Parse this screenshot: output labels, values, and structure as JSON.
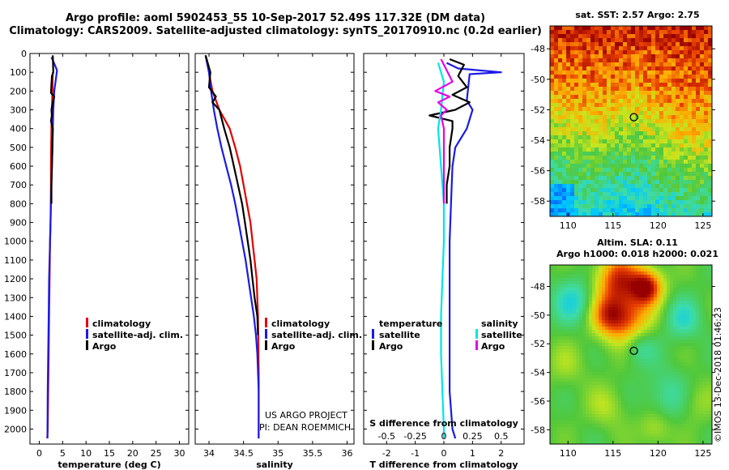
{
  "header": {
    "line1": "Argo profile: aoml 5902453_55 10-Sep-2017 52.49S 117.32E (DM data)",
    "line2": "Climatology: CARS2009. Satellite-adjusted climatology: synTS_20170910.nc (0.2d earlier)"
  },
  "legend": {
    "climatology": "climatology",
    "satellite_adj": "satellite-adj. clim.",
    "argo": "Argo",
    "temperature": "temperature",
    "salinity": "salinity",
    "satellite": "satellite"
  },
  "credits": {
    "line1": "US ARGO PROJECT",
    "line2": "PI: DEAN ROEMMICH",
    "imos": "©IMOS 13-Dec-2018 01:46:23"
  },
  "colors": {
    "climatology": "#e00000",
    "satellite_adj": "#1a1ae6",
    "argo": "#000000",
    "sal_satellite": "#00e5e5",
    "sal_argo": "#e600e6"
  },
  "chart_data": [
    {
      "type": "line",
      "id": "temperature",
      "xlabel": "temperature (deg C)",
      "ylabel": "",
      "xlim": [
        -2,
        32
      ],
      "ylim": [
        2080,
        0
      ],
      "xticks": [
        0,
        5,
        10,
        15,
        20,
        25,
        30
      ],
      "yticks": [
        0,
        100,
        200,
        300,
        400,
        500,
        600,
        700,
        800,
        900,
        1000,
        1100,
        1200,
        1300,
        1400,
        1500,
        1600,
        1700,
        1800,
        1900,
        2000
      ],
      "series": [
        {
          "name": "climatology",
          "color": "#e00000",
          "x": [
            2.9,
            2.8,
            2.7,
            2.6,
            2.55,
            2.5,
            2.5,
            2.45,
            2.4,
            2.3,
            2.2,
            2.1,
            2.0,
            1.9,
            1.8,
            1.7
          ],
          "y": [
            100,
            200,
            300,
            400,
            500,
            600,
            700,
            800,
            900,
            1000,
            1200,
            1400,
            1600,
            1800,
            2000,
            2050
          ]
        },
        {
          "name": "satellite-adj. clim.",
          "color": "#1a1ae6",
          "x": [
            2.6,
            3.3,
            3.8,
            3.2,
            3.0,
            2.9,
            2.8,
            2.7,
            2.6,
            2.5,
            2.4,
            2.3,
            2.1,
            2.0,
            1.9,
            1.8,
            1.75
          ],
          "y": [
            20,
            60,
            90,
            200,
            300,
            400,
            500,
            600,
            700,
            800,
            900,
            1000,
            1200,
            1400,
            1600,
            1800,
            2050
          ]
        },
        {
          "name": "Argo",
          "color": "#000000",
          "x": [
            2.9,
            3.0,
            2.7,
            2.5,
            3.2,
            2.9,
            2.6,
            2.7,
            2.5,
            2.9,
            2.8,
            2.7,
            2.6,
            2.6
          ],
          "y": [
            10,
            100,
            120,
            210,
            230,
            260,
            300,
            330,
            360,
            400,
            500,
            600,
            700,
            800
          ]
        }
      ]
    },
    {
      "type": "line",
      "id": "salinity",
      "xlabel": "salinity",
      "ylabel": "",
      "xlim": [
        33.8,
        36.1
      ],
      "ylim": [
        2080,
        0
      ],
      "xticks": [
        34,
        34.5,
        35,
        35.5,
        36
      ],
      "yticks": [
        0,
        100,
        200,
        300,
        400,
        500,
        600,
        700,
        800,
        900,
        1000,
        1100,
        1200,
        1300,
        1400,
        1500,
        1600,
        1700,
        1800,
        1900,
        2000
      ],
      "series": [
        {
          "name": "climatology",
          "color": "#e00000",
          "x": [
            33.95,
            34.0,
            34.05,
            34.15,
            34.3,
            34.38,
            34.45,
            34.5,
            34.55,
            34.6,
            34.63,
            34.66,
            34.69,
            34.71,
            34.72,
            34.72
          ],
          "y": [
            10,
            100,
            200,
            300,
            400,
            500,
            600,
            700,
            800,
            900,
            1000,
            1100,
            1200,
            1400,
            1700,
            2050
          ]
        },
        {
          "name": "satellite-adj. clim.",
          "color": "#1a1ae6",
          "x": [
            33.95,
            34.0,
            34.03,
            34.07,
            34.12,
            34.18,
            34.25,
            34.32,
            34.38,
            34.43,
            34.48,
            34.53,
            34.57,
            34.61,
            34.65,
            34.68,
            34.7,
            34.72,
            34.72
          ],
          "y": [
            10,
            100,
            200,
            300,
            400,
            500,
            600,
            700,
            800,
            900,
            1000,
            1100,
            1200,
            1300,
            1400,
            1500,
            1600,
            1800,
            2050
          ]
        },
        {
          "name": "Argo",
          "color": "#000000",
          "x": [
            33.95,
            34.02,
            34.0,
            34.1,
            34.05,
            34.15,
            34.22,
            34.3,
            34.36,
            34.42,
            34.48,
            34.52,
            34.56,
            34.6,
            34.63,
            34.66,
            34.7,
            34.71
          ],
          "y": [
            10,
            100,
            180,
            230,
            260,
            300,
            400,
            500,
            600,
            700,
            800,
            900,
            1000,
            1100,
            1200,
            1300,
            1400,
            1500
          ]
        }
      ]
    },
    {
      "type": "line",
      "id": "difference",
      "xlabel": "T difference from climatology",
      "ylabel": "",
      "xlim": [
        -2.8,
        2.8
      ],
      "ylim": [
        2080,
        0
      ],
      "xticks": [
        -2,
        -1,
        0,
        1,
        2
      ],
      "xtick_labels_top": [
        "-0.5",
        "-0.25",
        "0",
        "0.25",
        "0.5"
      ],
      "top_axis_label": "S difference from climatology",
      "yticks": [
        0,
        100,
        200,
        300,
        400,
        500,
        600,
        700,
        800,
        900,
        1000,
        1100,
        1200,
        1300,
        1400,
        1500,
        1600,
        1700,
        1800,
        1900,
        2000
      ],
      "series": [
        {
          "name": "temperature satellite",
          "color": "#1a1ae6",
          "x": [
            0.1,
            0.5,
            2.0,
            0.9,
            0.8,
            1.0,
            0.8,
            0.4,
            0.3,
            0.25,
            0.2,
            0.2,
            0.2,
            0.2,
            0.3,
            0.4
          ],
          "y": [
            50,
            80,
            100,
            110,
            250,
            300,
            400,
            500,
            600,
            800,
            1000,
            1200,
            1500,
            1800,
            2000,
            2050
          ]
        },
        {
          "name": "temperature Argo",
          "color": "#000000",
          "x": [
            0.2,
            0.7,
            0.5,
            0.8,
            0.3,
            0.9,
            0.4,
            -0.5,
            0.3,
            0.3,
            0.2,
            0.2,
            0.1,
            0.1
          ],
          "y": [
            30,
            60,
            120,
            180,
            220,
            260,
            300,
            330,
            360,
            400,
            500,
            600,
            700,
            800
          ]
        },
        {
          "name": "salinity satellite",
          "color": "#00e5e5",
          "x": [
            -0.2,
            0.0,
            -0.1,
            -0.2,
            -0.1,
            0.0,
            0.0,
            -0.05,
            -0.1,
            -0.1,
            -0.05,
            0.0,
            0.0
          ],
          "y": [
            50,
            150,
            300,
            400,
            600,
            800,
            1000,
            1200,
            1400,
            1600,
            1800,
            2000,
            2050
          ]
        },
        {
          "name": "salinity Argo",
          "color": "#e600e6",
          "x": [
            -0.1,
            0.3,
            -0.3,
            0.2,
            -0.2,
            0.1,
            -0.1,
            0.0,
            0.0,
            0.0
          ],
          "y": [
            30,
            150,
            200,
            230,
            260,
            300,
            330,
            400,
            600,
            800
          ]
        }
      ]
    },
    {
      "type": "heatmap",
      "id": "sst-map",
      "title": "sat. SST: 2.57 Argo: 2.75",
      "xlim": [
        108,
        126
      ],
      "ylim": [
        -59,
        -46.5
      ],
      "xticks": [
        110,
        115,
        120,
        125
      ],
      "yticks": [
        -48,
        -50,
        -52,
        -54,
        -56,
        -58
      ],
      "marker": {
        "lon": 117.32,
        "lat": -52.49
      }
    },
    {
      "type": "heatmap",
      "id": "sla-map",
      "title_line1": "Altim. SLA: 0.11",
      "title_line2": "Argo h1000: 0.018 h2000: 0.021",
      "xlim": [
        108,
        126
      ],
      "ylim": [
        -59,
        -46.5
      ],
      "xticks": [
        110,
        115,
        120,
        125
      ],
      "yticks": [
        -48,
        -50,
        -52,
        -54,
        -56,
        -58
      ],
      "marker": {
        "lon": 117.32,
        "lat": -52.49
      }
    }
  ]
}
